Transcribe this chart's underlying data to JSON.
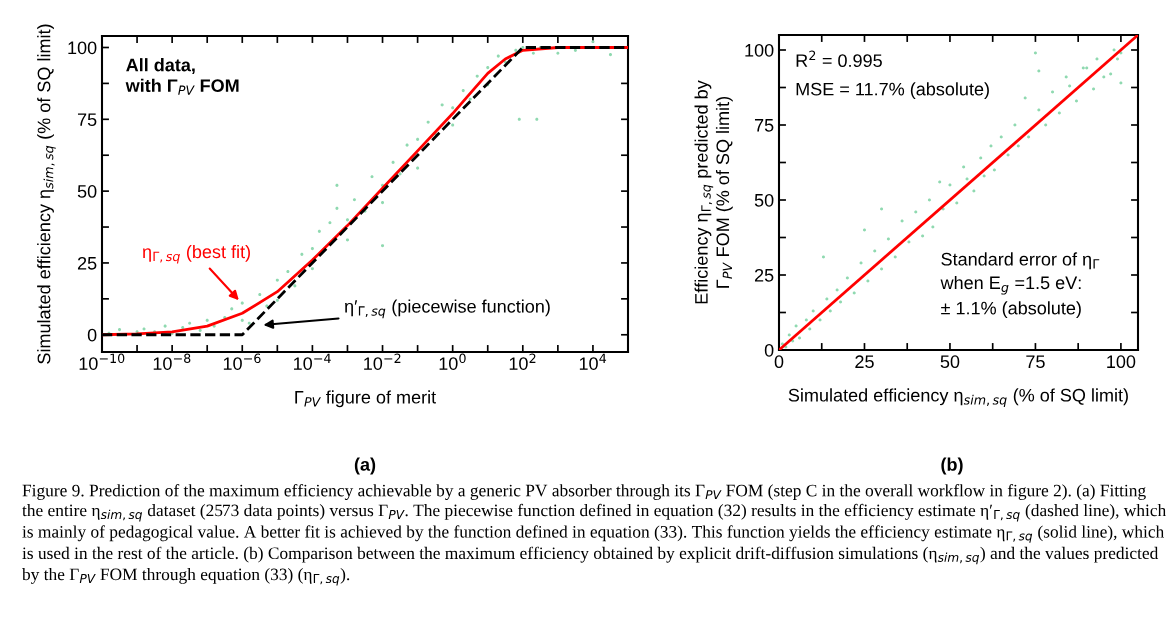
{
  "chart_data": [
    {
      "type": "scatter",
      "xlabel": "Γ$_{PV}$ figure of merit",
      "ylabel": "Simulated efficiency η$_{sim,sq}$ (% of SQ limit)",
      "log": "x",
      "xlim": [
        1e-10,
        100000.0
      ],
      "ylim": [
        -6,
        104
      ],
      "grid": false,
      "legend": false,
      "xticks": [
        {
          "value": 1e-10,
          "label": "10$^{−10}$"
        },
        {
          "value": 1e-09,
          "label": null
        },
        {
          "value": 1e-08,
          "label": "10$^{−8}$"
        },
        {
          "value": 1e-07,
          "label": null
        },
        {
          "value": 1e-06,
          "label": "10$^{−6}$"
        },
        {
          "value": 1e-05,
          "label": null
        },
        {
          "value": 0.0001,
          "label": "10$^{−4}$"
        },
        {
          "value": 0.001,
          "label": null
        },
        {
          "value": 0.01,
          "label": "10$^{−2}$"
        },
        {
          "value": 0.1,
          "label": null
        },
        {
          "value": 1,
          "label": "10$^{0}$"
        },
        {
          "value": 10,
          "label": null
        },
        {
          "value": 100,
          "label": "10$^{2}$"
        },
        {
          "value": 1000,
          "label": null
        },
        {
          "value": 10000,
          "label": "10$^{4}$"
        }
      ],
      "yticks": [
        0,
        {
          "value": 12.5,
          "label": null
        },
        25,
        {
          "value": 37.5,
          "label": null
        },
        50,
        {
          "value": 62.5,
          "label": null
        },
        75,
        {
          "value": 87.5,
          "label": null
        },
        100
      ],
      "series": [
        {
          "color": "#8fd9b0",
          "marker": "circle",
          "x": [
            1.58e-10,
            3.16e-10,
            1e-09,
            1.58e-09,
            3.16e-09,
            6.31e-09,
            1e-08,
            2e-08,
            3.16e-08,
            6.31e-08,
            1e-07,
            1.58e-07,
            3.16e-07,
            5.01e-07,
            1e-06,
            1e-06,
            1.58e-06,
            3.16e-06,
            5.01e-06,
            1e-05,
            1e-05,
            2e-05,
            3.16e-05,
            5.01e-05,
            0.0001,
            0.0001,
            0.000158,
            0.000316,
            0.000501,
            0.001,
            0.001,
            0.00158,
            0.00316,
            0.00501,
            0.01,
            0.01,
            0.02,
            0.0316,
            0.0501,
            0.1,
            0.1,
            0.2,
            0.316,
            0.501,
            1,
            1,
            2,
            3.16,
            5.01,
            10,
            10,
            20,
            31.6,
            63.1,
            100,
            200,
            316,
            1000,
            3160,
            10000,
            31600,
            79.4,
            251,
            0.01,
            0.000501
          ],
          "values": [
            0.5,
            1.8,
            1,
            2,
            1,
            3,
            0.5,
            2.5,
            4,
            1.5,
            5,
            3,
            6,
            9,
            11,
            5,
            4,
            14,
            10,
            19,
            12,
            22,
            17,
            28,
            30,
            23,
            36,
            39,
            44,
            40,
            33,
            47,
            43,
            55,
            52,
            46,
            60,
            56,
            66,
            68,
            58,
            74,
            70,
            80,
            79,
            73,
            85,
            82,
            90,
            93,
            87,
            97,
            95,
            99,
            100,
            98,
            100,
            98,
            99,
            102,
            97.5,
            75,
            75,
            31,
            52
          ]
        },
        {
          "type": "line",
          "color": "#ff0000",
          "line_style": "solid",
          "marker": "none",
          "x": [
            1e-10,
            1e-09,
            1e-08,
            1e-07,
            1e-06,
            1e-05,
            0.0001,
            0.001,
            0.01,
            0.1,
            1,
            3.16,
            10,
            31.6,
            100,
            1000,
            100000
          ],
          "values": [
            0,
            0.3,
            1,
            3,
            7.5,
            15,
            26,
            38,
            51,
            64,
            77,
            84,
            91,
            96,
            99,
            100,
            100
          ]
        },
        {
          "type": "line",
          "color": "#000000",
          "line_style": "dashed",
          "marker": "none",
          "x": [
            1e-10,
            1e-06,
            100,
            100000
          ],
          "values": [
            0,
            0,
            100,
            100
          ]
        }
      ],
      "annotations": [
        "All data,\nwith Γ$_{PV}$ FOM",
        {
          "text": "η$_{Γ,sq}$ (best fit)",
          "x": 8e-07,
          "y": 12
        },
        "η′$_{Γ,sq}$ (piecewise function)",
        "(a)",
        "Figure 9. Prediction of the maximum efficiency achievable by a generic PV absorber through its Γ$_{PV}$ FOM (step C in the overall workflow in figure 2). (a) Fitting the entire η$_{sim,sq}$ dataset (2573 data points) versus Γ$_{PV}$. The piecewise function defined in equation (32) results in the efficiency estimate η′$_{Γ,sq}$ (dashed line), which is mainly of pedagogical value. A better fit is achieved by the function defined in equation (33). This function yields the efficiency estimate η$_{Γ,sq}$ (solid line), which is used in the rest of the article. (b) Comparison between the maximum efficiency obtained by explicit drift-diffusion simulations (η$_{sim,sq}$) and the values predicted by the Γ$_{PV}$ FOM through equation (33) (η$_{Γ,sq}$)."
      ]
    },
    {
      "type": "scatter",
      "xlabel": "Simulated efficiency η$_{sim,sq}$ (% of SQ limit)",
      "ylabel": "Efficiency η$_{Γ,sq}$ predicted by\nΓ$_{PV}$ FOM (% of SQ limit)",
      "xlim": [
        0,
        105
      ],
      "ylim": [
        0,
        105
      ],
      "grid": false,
      "legend": false,
      "xticks": [
        0,
        {
          "value": 12.5,
          "label": null
        },
        25,
        {
          "value": 37.5,
          "label": null
        },
        50,
        {
          "value": 62.5,
          "label": null
        },
        75,
        {
          "value": 87.5,
          "label": null
        },
        100
      ],
      "yticks": [
        0,
        {
          "value": 12.5,
          "label": null
        },
        25,
        {
          "value": 37.5,
          "label": null
        },
        50,
        {
          "value": 62.5,
          "label": null
        },
        75,
        {
          "value": 87.5,
          "label": null
        },
        100
      ],
      "series": [
        {
          "color": "#8fd9b0",
          "marker": "circle",
          "x": [
            1,
            2,
            3,
            4,
            5,
            6,
            8,
            9,
            10,
            12,
            13,
            14,
            15,
            17,
            18,
            20,
            22,
            24,
            25,
            26,
            28,
            30,
            30,
            32,
            34,
            36,
            38,
            40,
            42,
            44,
            45,
            47,
            48,
            50,
            52,
            54,
            55,
            57,
            59,
            60,
            62,
            63,
            65,
            67,
            69,
            70,
            72,
            73,
            75,
            76,
            76,
            78,
            80,
            82,
            84,
            85,
            87,
            89,
            90,
            92,
            93,
            95,
            97,
            98,
            99,
            100,
            100
          ],
          "values": [
            2,
            1,
            5,
            3,
            8,
            4,
            10,
            7,
            13,
            10,
            31,
            17,
            13,
            20,
            16,
            24,
            19,
            29,
            40,
            23,
            33,
            27,
            47,
            37,
            31,
            43,
            36,
            46,
            38,
            50,
            41,
            56,
            47,
            55,
            49,
            61,
            57,
            53,
            64,
            58,
            68,
            60,
            71,
            65,
            75,
            68,
            84,
            71,
            99,
            93,
            80,
            75,
            86,
            79,
            91,
            88,
            83,
            94,
            94,
            87,
            97,
            91,
            92,
            100,
            97,
            99,
            89
          ]
        },
        {
          "type": "line",
          "color": "#ff0000",
          "line_style": "solid",
          "marker": "none",
          "x": [
            0,
            105
          ],
          "values": [
            0,
            105
          ]
        }
      ],
      "annotations": [
        "R$^{2}$ = 0.995",
        "MSE = 11.7% (absolute)",
        "Standard error of η$_{Γ}$\nwhen E$_{g}$ =1.5 eV:\n± 1.1% (absolute)",
        "(b)"
      ]
    }
  ]
}
